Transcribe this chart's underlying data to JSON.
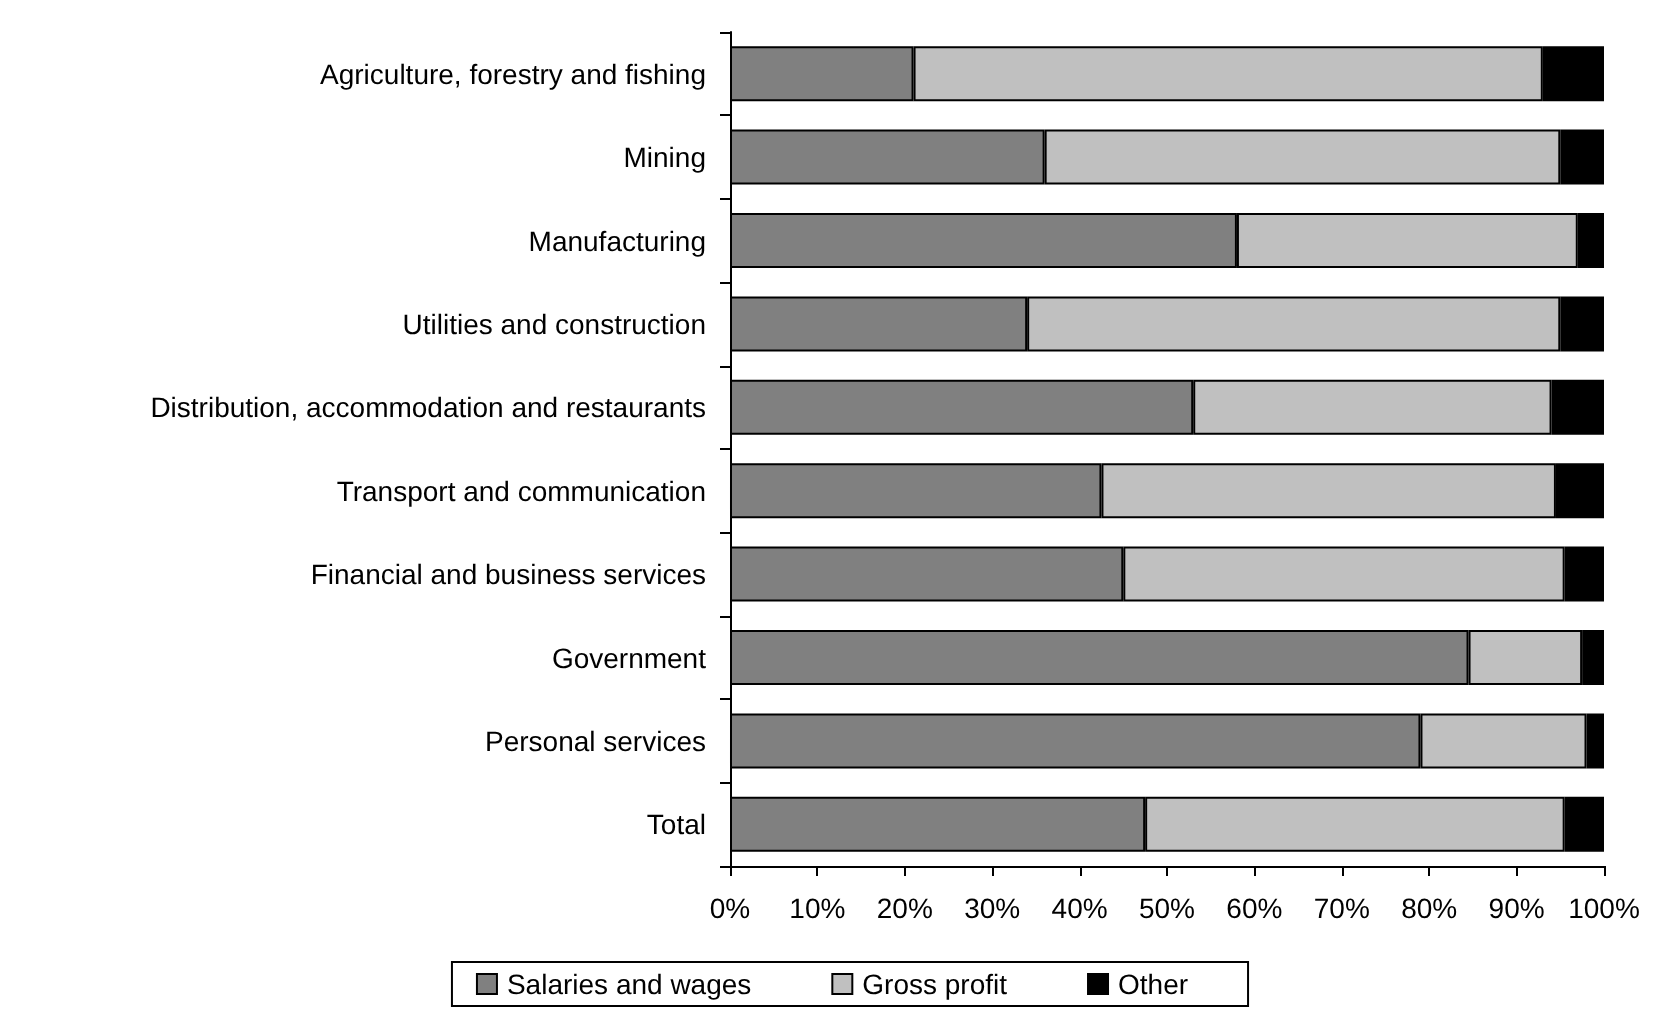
{
  "chart_data": {
    "type": "bar",
    "orientation": "horizontal",
    "stacked": true,
    "categories": [
      "Agriculture, forestry and fishing",
      "Mining",
      "Manufacturing",
      "Utilities and construction",
      "Distribution, accommodation and restaurants",
      "Transport and communication",
      "Financial and business services",
      "Government",
      "Personal services",
      "Total"
    ],
    "series": [
      {
        "name": "Salaries and wages",
        "color": "#808080",
        "values": [
          21,
          36,
          58,
          34,
          53,
          42.5,
          45,
          84.5,
          79,
          47.5
        ]
      },
      {
        "name": "Gross profit",
        "color": "#c0c0c0",
        "values": [
          72,
          59,
          39,
          61,
          41,
          52,
          50.5,
          13,
          19,
          48
        ]
      },
      {
        "name": "Other",
        "color": "#000000",
        "values": [
          7,
          5,
          3,
          5,
          6,
          5.5,
          4.5,
          2.5,
          2,
          4.5
        ]
      }
    ],
    "xlim": [
      0,
      100
    ],
    "xticks": [
      {
        "value": 0,
        "label": "0%"
      },
      {
        "value": 10,
        "label": "10%"
      },
      {
        "value": 20,
        "label": "20%"
      },
      {
        "value": 30,
        "label": "30%"
      },
      {
        "value": 40,
        "label": "40%"
      },
      {
        "value": 50,
        "label": "50%"
      },
      {
        "value": 60,
        "label": "60%"
      },
      {
        "value": 70,
        "label": "70%"
      },
      {
        "value": 80,
        "label": "80%"
      },
      {
        "value": 90,
        "label": "90%"
      },
      {
        "value": 100,
        "label": "100%"
      }
    ],
    "grid": false,
    "legend": "bottom"
  }
}
